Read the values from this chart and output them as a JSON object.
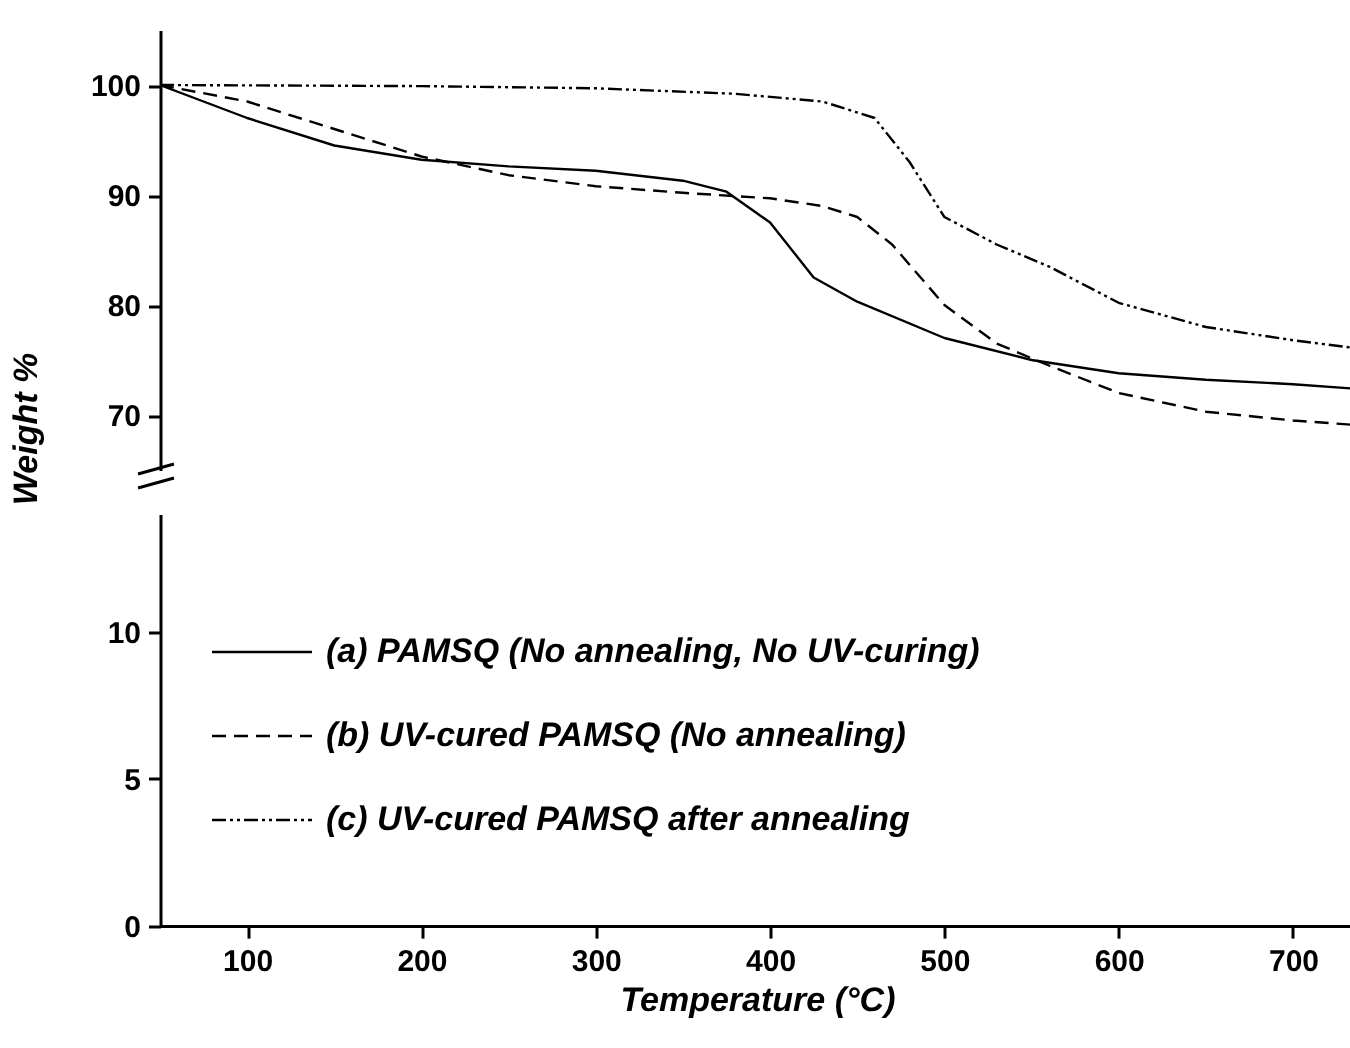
{
  "chart_data": [
    {
      "type": "line",
      "ylabel": "Weight %",
      "xlim": [
        50,
        735
      ],
      "xticks": [
        100,
        200,
        300,
        400,
        500,
        600,
        700
      ],
      "ylim": [
        65,
        105
      ],
      "yticks": [
        70,
        80,
        90,
        100
      ],
      "tick_labels": "y",
      "legend": "bottom left",
      "x": [
        50,
        100,
        150,
        200,
        250,
        300,
        350,
        375,
        400,
        425,
        450,
        500,
        550,
        600,
        650,
        700,
        735
      ],
      "series": [
        {
          "name": "(a) PAMSQ (No annealing, No UV-curing)",
          "color": "#000000",
          "line_style": "solid",
          "values": [
            100,
            97,
            94.5,
            93.2,
            92.6,
            92.2,
            91.3,
            90.3,
            87.5,
            82.5,
            80.3,
            77,
            75,
            73.8,
            73.2,
            72.8,
            72.4
          ]
        },
        {
          "name": "(b) UV-cured PAMSQ (No annealing)",
          "color": "#000000",
          "line_style": "dashed",
          "x": [
            50,
            100,
            150,
            200,
            250,
            300,
            350,
            400,
            430,
            450,
            470,
            500,
            530,
            560,
            600,
            650,
            700,
            735
          ],
          "values": [
            100,
            98.5,
            96,
            93.5,
            91.8,
            90.8,
            90.2,
            89.7,
            89,
            88,
            85.5,
            80,
            76.5,
            74.5,
            72,
            70.3,
            69.5,
            69.1
          ]
        },
        {
          "name": "(c) UV-cured PAMSQ after annealing",
          "color": "#000000",
          "line_style": "dotted",
          "x": [
            50,
            200,
            300,
            380,
            430,
            460,
            480,
            500,
            530,
            560,
            600,
            650,
            700,
            735
          ],
          "values": [
            100,
            99.9,
            99.7,
            99.2,
            98.5,
            97,
            93,
            88,
            85.5,
            83.5,
            80.2,
            78,
            76.8,
            76.1
          ]
        }
      ]
    },
    {
      "type": "line",
      "xlabel": "Temperature (°C)",
      "xlim": [
        50,
        735
      ],
      "xticks": [
        100,
        200,
        300,
        400,
        500,
        600,
        700
      ],
      "ylim": [
        0,
        14
      ],
      "yticks": [
        0,
        5,
        10
      ]
    }
  ]
}
